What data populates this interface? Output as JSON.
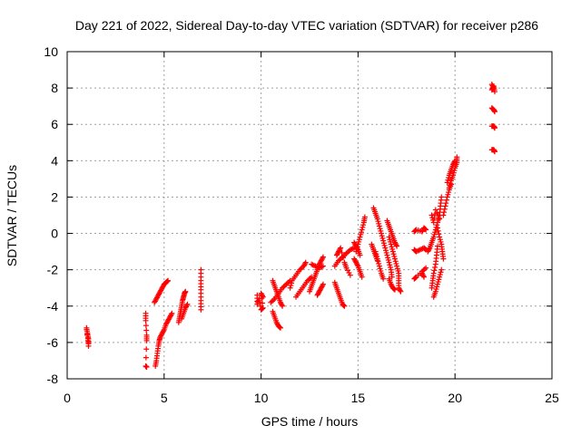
{
  "chart_data": {
    "type": "scatter",
    "title": "Day 221 of 2022, Sidereal Day-to-day VTEC variation (SDTVAR) for receiver p286",
    "xlabel": "GPS time / hours",
    "ylabel": "SDTVAR / TECUs",
    "xlim": [
      0,
      25
    ],
    "ylim": [
      -8,
      10
    ],
    "xticks": [
      0,
      5,
      10,
      15,
      20,
      25
    ],
    "yticks": [
      -8,
      -6,
      -4,
      -2,
      0,
      2,
      4,
      6,
      8,
      10
    ],
    "grid": true,
    "marker": "plus",
    "color": "#ff0000",
    "segments": [
      [
        [
          1.0,
          -5.2
        ],
        [
          1.05,
          -5.5
        ],
        [
          1.1,
          -5.8
        ],
        [
          1.1,
          -6.2
        ],
        [
          1.0,
          -5.3
        ],
        [
          1.1,
          -6.0
        ]
      ],
      [
        [
          4.05,
          -4.4
        ],
        [
          4.05,
          -4.8
        ],
        [
          4.1,
          -5.6
        ],
        [
          4.1,
          -5.9
        ],
        [
          4.05,
          -7.3
        ],
        [
          4.1,
          -7.35
        ]
      ],
      [
        [
          4.55,
          -7.3
        ],
        [
          4.6,
          -7.0
        ],
        [
          4.65,
          -6.6
        ],
        [
          4.7,
          -6.2
        ],
        [
          4.75,
          -5.9
        ],
        [
          4.8,
          -5.7
        ],
        [
          4.9,
          -5.5
        ],
        [
          5.0,
          -5.3
        ],
        [
          5.1,
          -5.0
        ],
        [
          5.2,
          -4.8
        ],
        [
          5.3,
          -4.6
        ],
        [
          5.4,
          -4.4
        ]
      ],
      [
        [
          4.5,
          -3.8
        ],
        [
          4.6,
          -3.6
        ],
        [
          4.7,
          -3.4
        ],
        [
          4.8,
          -3.2
        ],
        [
          4.9,
          -3.0
        ],
        [
          5.0,
          -2.8
        ],
        [
          5.1,
          -2.7
        ],
        [
          5.2,
          -2.6
        ]
      ],
      [
        [
          5.75,
          -4.9
        ],
        [
          5.8,
          -4.6
        ],
        [
          5.85,
          -4.3
        ],
        [
          5.9,
          -4.0
        ],
        [
          5.95,
          -3.7
        ],
        [
          6.0,
          -3.5
        ],
        [
          6.05,
          -3.3
        ],
        [
          6.1,
          -3.2
        ]
      ],
      [
        [
          5.9,
          -4.7
        ],
        [
          6.0,
          -4.4
        ],
        [
          6.1,
          -4.1
        ],
        [
          6.2,
          -3.9
        ]
      ],
      [
        [
          6.9,
          -2.0
        ],
        [
          6.9,
          -2.6
        ],
        [
          6.9,
          -3.1
        ],
        [
          6.9,
          -3.7
        ],
        [
          6.9,
          -4.2
        ]
      ],
      [
        [
          9.8,
          -3.4
        ],
        [
          9.8,
          -3.9
        ],
        [
          9.9,
          -3.6
        ],
        [
          10.0,
          -4.2
        ],
        [
          10.1,
          -4.1
        ],
        [
          10.0,
          -3.3
        ],
        [
          10.1,
          -3.5
        ]
      ],
      [
        [
          10.6,
          -4.3
        ],
        [
          10.7,
          -4.6
        ],
        [
          10.8,
          -4.9
        ],
        [
          10.9,
          -5.1
        ],
        [
          11.0,
          -5.2
        ]
      ],
      [
        [
          10.6,
          -2.6
        ],
        [
          10.7,
          -2.9
        ],
        [
          10.8,
          -3.2
        ],
        [
          10.9,
          -3.5
        ],
        [
          11.0,
          -3.8
        ],
        [
          11.1,
          -4.0
        ]
      ],
      [
        [
          10.5,
          -3.8
        ],
        [
          10.7,
          -3.6
        ],
        [
          10.9,
          -3.3
        ],
        [
          11.1,
          -3.0
        ],
        [
          11.3,
          -2.8
        ],
        [
          11.5,
          -2.6
        ]
      ],
      [
        [
          11.5,
          -3.0
        ],
        [
          11.6,
          -2.6
        ],
        [
          11.8,
          -2.3
        ],
        [
          12.0,
          -2.0
        ],
        [
          12.2,
          -1.8
        ],
        [
          12.3,
          -1.6
        ]
      ],
      [
        [
          11.8,
          -3.5
        ],
        [
          12.0,
          -3.2
        ],
        [
          12.2,
          -2.9
        ],
        [
          12.4,
          -2.6
        ],
        [
          12.6,
          -2.4
        ]
      ],
      [
        [
          12.5,
          -3.2
        ],
        [
          12.6,
          -2.9
        ],
        [
          12.7,
          -2.6
        ],
        [
          12.8,
          -2.3
        ],
        [
          12.9,
          -2.0
        ],
        [
          13.0,
          -1.7
        ],
        [
          13.1,
          -1.5
        ],
        [
          13.2,
          -1.3
        ]
      ],
      [
        [
          12.6,
          -1.7
        ],
        [
          12.8,
          -1.8
        ],
        [
          13.0,
          -1.9
        ],
        [
          13.2,
          -1.8
        ]
      ],
      [
        [
          12.9,
          -3.4
        ],
        [
          13.0,
          -3.2
        ],
        [
          13.1,
          -3.0
        ],
        [
          13.2,
          -2.8
        ]
      ],
      [
        [
          13.8,
          -2.7
        ],
        [
          13.9,
          -3.0
        ],
        [
          14.0,
          -3.3
        ],
        [
          14.1,
          -3.6
        ],
        [
          14.2,
          -3.9
        ],
        [
          14.3,
          -4.0
        ]
      ],
      [
        [
          13.8,
          -1.8
        ],
        [
          14.0,
          -1.5
        ],
        [
          14.2,
          -1.3
        ],
        [
          14.4,
          -1.1
        ],
        [
          14.6,
          -0.9
        ],
        [
          14.8,
          -0.8
        ]
      ],
      [
        [
          13.9,
          -1.2
        ],
        [
          14.0,
          -1.0
        ],
        [
          14.1,
          -0.8
        ],
        [
          14.3,
          -1.6
        ],
        [
          14.4,
          -1.9
        ],
        [
          14.6,
          -2.3
        ]
      ],
      [
        [
          14.9,
          -1.0
        ],
        [
          15.0,
          -0.6
        ],
        [
          15.1,
          -0.2
        ],
        [
          15.2,
          0.2
        ],
        [
          15.3,
          0.6
        ],
        [
          15.35,
          0.9
        ]
      ],
      [
        [
          14.8,
          -1.4
        ],
        [
          14.9,
          -1.6
        ],
        [
          15.0,
          -1.8
        ],
        [
          15.1,
          -2.1
        ],
        [
          15.2,
          -2.4
        ]
      ],
      [
        [
          14.8,
          -0.5
        ],
        [
          14.9,
          -0.7
        ],
        [
          15.0,
          -0.9
        ],
        [
          15.1,
          -1.2
        ]
      ],
      [
        [
          15.8,
          1.4
        ],
        [
          15.9,
          1.1
        ],
        [
          16.0,
          0.8
        ],
        [
          16.1,
          0.4
        ],
        [
          16.2,
          0.0
        ],
        [
          16.3,
          -0.4
        ],
        [
          16.4,
          -0.8
        ],
        [
          16.5,
          -1.2
        ],
        [
          16.6,
          -1.6
        ],
        [
          16.7,
          -2.0
        ],
        [
          16.75,
          -2.4
        ]
      ],
      [
        [
          15.9,
          -1.0
        ],
        [
          16.0,
          -1.4
        ],
        [
          16.1,
          -1.8
        ],
        [
          16.2,
          -2.2
        ],
        [
          16.3,
          -2.5
        ]
      ],
      [
        [
          15.7,
          -0.6
        ],
        [
          15.8,
          -0.9
        ],
        [
          15.9,
          -1.2
        ],
        [
          16.0,
          -1.5
        ]
      ],
      [
        [
          16.5,
          0.7
        ],
        [
          16.6,
          0.4
        ],
        [
          16.7,
          0.1
        ],
        [
          16.8,
          -0.2
        ],
        [
          16.9,
          -0.5
        ],
        [
          17.0,
          -0.7
        ]
      ],
      [
        [
          16.6,
          -0.2
        ],
        [
          16.7,
          -0.6
        ],
        [
          16.8,
          -1.0
        ],
        [
          16.9,
          -1.4
        ],
        [
          17.0,
          -1.8
        ],
        [
          17.1,
          -2.2
        ],
        [
          17.1,
          -2.6
        ],
        [
          17.1,
          -3.0
        ],
        [
          17.2,
          -3.2
        ]
      ],
      [
        [
          16.6,
          -2.5
        ],
        [
          16.7,
          -2.8
        ],
        [
          16.8,
          -3.0
        ],
        [
          16.9,
          -3.1
        ]
      ],
      [
        [
          17.9,
          0.1
        ],
        [
          18.0,
          0.2
        ],
        [
          18.3,
          0.1
        ],
        [
          18.4,
          0.3
        ],
        [
          18.5,
          0.2
        ]
      ],
      [
        [
          17.9,
          -0.9
        ],
        [
          18.0,
          -1.0
        ],
        [
          18.2,
          -0.9
        ],
        [
          18.4,
          -0.8
        ],
        [
          18.5,
          -0.9
        ]
      ],
      [
        [
          17.9,
          -2.5
        ],
        [
          18.0,
          -2.4
        ],
        [
          18.3,
          -2.1
        ],
        [
          18.5,
          -1.9
        ]
      ],
      [
        [
          18.3,
          -2.2
        ],
        [
          18.4,
          -2.4
        ]
      ],
      [
        [
          18.6,
          -1.0
        ],
        [
          18.7,
          -0.8
        ],
        [
          18.8,
          -0.5
        ],
        [
          18.9,
          -0.2
        ],
        [
          19.0,
          0.2
        ],
        [
          19.1,
          0.6
        ],
        [
          19.2,
          1.0
        ],
        [
          19.25,
          1.5
        ],
        [
          19.3,
          2.0
        ]
      ],
      [
        [
          18.8,
          -3.0
        ],
        [
          18.85,
          -2.6
        ],
        [
          18.9,
          -2.2
        ],
        [
          19.0,
          -1.7
        ],
        [
          19.05,
          -1.2
        ],
        [
          19.1,
          -0.7
        ]
      ],
      [
        [
          18.9,
          -3.5
        ],
        [
          19.0,
          -3.2
        ],
        [
          19.1,
          -2.8
        ],
        [
          19.2,
          -2.4
        ],
        [
          19.3,
          -2.0
        ]
      ],
      [
        [
          19.1,
          0.3
        ],
        [
          19.2,
          -0.2
        ],
        [
          19.3,
          -0.6
        ],
        [
          19.35,
          -1.0
        ],
        [
          19.4,
          -1.4
        ]
      ],
      [
        [
          18.8,
          1.0
        ],
        [
          18.9,
          0.6
        ],
        [
          19.0,
          1.3
        ],
        [
          19.2,
          0.8
        ]
      ],
      [
        [
          19.7,
          2.5
        ],
        [
          19.8,
          2.9
        ],
        [
          19.9,
          3.2
        ],
        [
          20.0,
          3.6
        ],
        [
          20.1,
          3.9
        ],
        [
          20.1,
          4.2
        ]
      ],
      [
        [
          19.4,
          1.0
        ],
        [
          19.5,
          1.5
        ],
        [
          19.6,
          2.0
        ],
        [
          19.7,
          2.4
        ],
        [
          19.8,
          2.7
        ]
      ],
      [
        [
          19.6,
          2.8
        ],
        [
          19.7,
          3.2
        ],
        [
          19.8,
          3.5
        ],
        [
          19.9,
          3.8
        ],
        [
          20.0,
          4.0
        ]
      ],
      [
        [
          21.9,
          8.2
        ],
        [
          22.0,
          8.0
        ],
        [
          21.9,
          7.9
        ],
        [
          22.0,
          8.1
        ],
        [
          22.05,
          7.8
        ]
      ],
      [
        [
          21.9,
          6.9
        ],
        [
          22.0,
          6.8
        ],
        [
          22.05,
          6.7
        ]
      ],
      [
        [
          21.9,
          5.9
        ],
        [
          22.0,
          5.9
        ],
        [
          22.05,
          5.8
        ]
      ],
      [
        [
          21.9,
          4.6
        ],
        [
          22.0,
          4.6
        ],
        [
          22.05,
          4.5
        ]
      ]
    ]
  }
}
